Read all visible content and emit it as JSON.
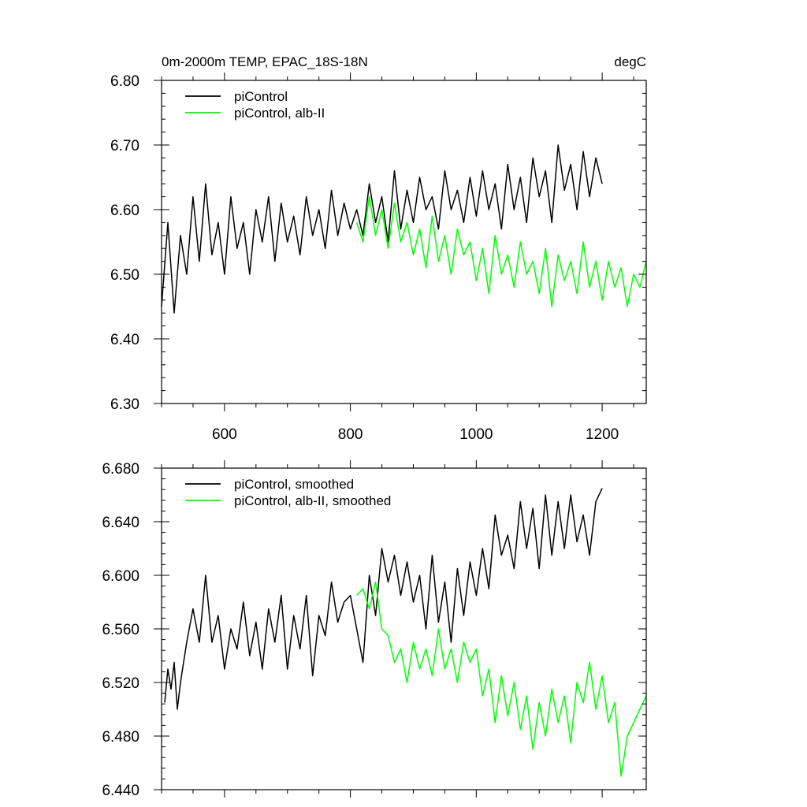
{
  "chart_data": [
    {
      "type": "line",
      "title_left": "0m-2000m TEMP, EPAC_18S-18N",
      "title_right": "degC",
      "xlim": [
        500,
        1270
      ],
      "ylim": [
        6.3,
        6.8
      ],
      "xticks": [
        600,
        800,
        1000,
        1200
      ],
      "xtick_labels": [
        "600",
        "800",
        "1000",
        "1200"
      ],
      "yticks": [
        6.3,
        6.4,
        6.5,
        6.6,
        6.7,
        6.8
      ],
      "ytick_labels": [
        "6.30",
        "6.40",
        "6.50",
        "6.60",
        "6.70",
        "6.80"
      ],
      "grid": false,
      "legend_position": "top-left",
      "series": [
        {
          "name": "piControl",
          "color": "#000000",
          "x": [
            500,
            510,
            520,
            530,
            540,
            550,
            560,
            570,
            580,
            590,
            600,
            610,
            620,
            630,
            640,
            650,
            660,
            670,
            680,
            690,
            700,
            710,
            720,
            730,
            740,
            750,
            760,
            770,
            780,
            790,
            800,
            810,
            820,
            830,
            840,
            850,
            860,
            870,
            880,
            890,
            900,
            910,
            920,
            930,
            940,
            950,
            960,
            970,
            980,
            990,
            1000,
            1010,
            1020,
            1030,
            1040,
            1050,
            1060,
            1070,
            1080,
            1090,
            1100,
            1110,
            1120,
            1130,
            1140,
            1150,
            1160,
            1170,
            1180,
            1190,
            1200
          ],
          "values": [
            6.45,
            6.58,
            6.44,
            6.56,
            6.5,
            6.62,
            6.52,
            6.64,
            6.53,
            6.58,
            6.5,
            6.62,
            6.54,
            6.58,
            6.5,
            6.6,
            6.55,
            6.62,
            6.52,
            6.61,
            6.55,
            6.59,
            6.53,
            6.62,
            6.56,
            6.6,
            6.54,
            6.63,
            6.56,
            6.61,
            6.57,
            6.6,
            6.56,
            6.64,
            6.58,
            6.62,
            6.55,
            6.66,
            6.57,
            6.63,
            6.58,
            6.65,
            6.6,
            6.62,
            6.57,
            6.66,
            6.6,
            6.63,
            6.58,
            6.65,
            6.59,
            6.66,
            6.6,
            6.64,
            6.57,
            6.67,
            6.6,
            6.65,
            6.58,
            6.68,
            6.62,
            6.66,
            6.58,
            6.7,
            6.63,
            6.67,
            6.6,
            6.69,
            6.62,
            6.68,
            6.64
          ]
        },
        {
          "name": "piControl, alb-II",
          "color": "#00ff00",
          "x": [
            810,
            820,
            830,
            840,
            850,
            860,
            870,
            880,
            890,
            900,
            910,
            920,
            930,
            940,
            950,
            960,
            970,
            980,
            990,
            1000,
            1010,
            1020,
            1030,
            1040,
            1050,
            1060,
            1070,
            1080,
            1090,
            1100,
            1110,
            1120,
            1130,
            1140,
            1150,
            1160,
            1170,
            1180,
            1190,
            1200,
            1210,
            1220,
            1230,
            1240,
            1250,
            1260,
            1270
          ],
          "values": [
            6.58,
            6.55,
            6.62,
            6.56,
            6.6,
            6.54,
            6.61,
            6.55,
            6.58,
            6.53,
            6.57,
            6.51,
            6.59,
            6.52,
            6.56,
            6.5,
            6.57,
            6.53,
            6.55,
            6.49,
            6.54,
            6.47,
            6.56,
            6.5,
            6.53,
            6.48,
            6.55,
            6.5,
            6.52,
            6.47,
            6.54,
            6.45,
            6.53,
            6.49,
            6.52,
            6.47,
            6.55,
            6.48,
            6.52,
            6.46,
            6.52,
            6.48,
            6.51,
            6.45,
            6.5,
            6.48,
            6.52
          ]
        }
      ]
    },
    {
      "type": "line",
      "xlim": [
        500,
        1270
      ],
      "ylim": [
        6.44,
        6.68
      ],
      "xticks": [
        600,
        800,
        1000,
        1200
      ],
      "yticks": [
        6.44,
        6.48,
        6.52,
        6.56,
        6.6,
        6.64,
        6.68
      ],
      "ytick_labels": [
        "6.440",
        "6.480",
        "6.520",
        "6.560",
        "6.600",
        "6.640",
        "6.680"
      ],
      "grid": false,
      "legend_position": "top-left",
      "series": [
        {
          "name": "piControl, smoothed",
          "color": "#000000",
          "x": [
            505,
            510,
            515,
            520,
            525,
            530,
            540,
            550,
            560,
            570,
            580,
            590,
            600,
            610,
            620,
            630,
            640,
            650,
            660,
            670,
            680,
            690,
            700,
            710,
            720,
            730,
            740,
            750,
            760,
            770,
            780,
            790,
            800,
            810,
            820,
            830,
            840,
            850,
            860,
            870,
            880,
            890,
            900,
            910,
            920,
            930,
            940,
            950,
            960,
            970,
            980,
            990,
            1000,
            1010,
            1020,
            1030,
            1040,
            1050,
            1060,
            1070,
            1080,
            1090,
            1100,
            1110,
            1120,
            1130,
            1140,
            1150,
            1160,
            1170,
            1180,
            1190,
            1200
          ],
          "values": [
            6.505,
            6.53,
            6.515,
            6.535,
            6.5,
            6.52,
            6.55,
            6.575,
            6.55,
            6.6,
            6.55,
            6.57,
            6.53,
            6.56,
            6.545,
            6.58,
            6.54,
            6.565,
            6.53,
            6.575,
            6.55,
            6.585,
            6.53,
            6.57,
            6.545,
            6.585,
            6.525,
            6.57,
            6.555,
            6.595,
            6.565,
            6.58,
            6.585,
            6.56,
            6.535,
            6.6,
            6.57,
            6.62,
            6.595,
            6.615,
            6.585,
            6.61,
            6.58,
            6.6,
            6.56,
            6.615,
            6.565,
            6.595,
            6.55,
            6.605,
            6.57,
            6.61,
            6.585,
            6.62,
            6.59,
            6.645,
            6.615,
            6.63,
            6.605,
            6.655,
            6.62,
            6.65,
            6.605,
            6.66,
            6.615,
            6.655,
            6.62,
            6.66,
            6.625,
            6.645,
            6.615,
            6.655,
            6.665
          ]
        },
        {
          "name": "piControl, alb-II, smoothed",
          "color": "#00ff00",
          "x": [
            810,
            820,
            830,
            840,
            850,
            860,
            870,
            880,
            890,
            900,
            910,
            920,
            930,
            940,
            950,
            960,
            970,
            980,
            990,
            1000,
            1010,
            1020,
            1030,
            1040,
            1050,
            1060,
            1070,
            1080,
            1090,
            1100,
            1110,
            1120,
            1130,
            1140,
            1150,
            1160,
            1170,
            1180,
            1190,
            1200,
            1210,
            1220,
            1230,
            1240,
            1250,
            1260,
            1270
          ],
          "values": [
            6.585,
            6.59,
            6.575,
            6.595,
            6.56,
            6.555,
            6.535,
            6.545,
            6.52,
            6.55,
            6.53,
            6.545,
            6.525,
            6.56,
            6.53,
            6.545,
            6.52,
            6.55,
            6.535,
            6.545,
            6.51,
            6.53,
            6.49,
            6.525,
            6.495,
            6.52,
            6.485,
            6.51,
            6.47,
            6.505,
            6.48,
            6.515,
            6.49,
            6.51,
            6.475,
            6.52,
            6.505,
            6.535,
            6.5,
            6.525,
            6.49,
            6.505,
            6.45,
            6.48,
            6.49,
            6.5,
            6.51
          ]
        }
      ]
    }
  ]
}
